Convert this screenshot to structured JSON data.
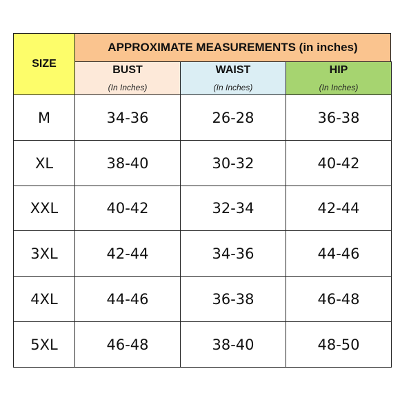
{
  "header": {
    "size_label": "SIZE",
    "title": "APPROXIMATE MEASUREMENTS (in inches)",
    "columns": [
      {
        "name": "BUST",
        "unit": "(In Inches)"
      },
      {
        "name": "WAIST",
        "unit": "(In Inches)"
      },
      {
        "name": "HIP",
        "unit": "(In Inches)"
      }
    ]
  },
  "table": {
    "rows": [
      [
        "M",
        "34-36",
        "26-28",
        "36-38"
      ],
      [
        "XL",
        "38-40",
        "30-32",
        "40-42"
      ],
      [
        "XXL",
        "40-42",
        "32-34",
        "42-44"
      ],
      [
        "3XL",
        "42-44",
        "34-36",
        "44-46"
      ],
      [
        "4XL",
        "44-46",
        "36-38",
        "46-48"
      ],
      [
        "5XL",
        "46-48",
        "38-40",
        "48-50"
      ]
    ]
  }
}
